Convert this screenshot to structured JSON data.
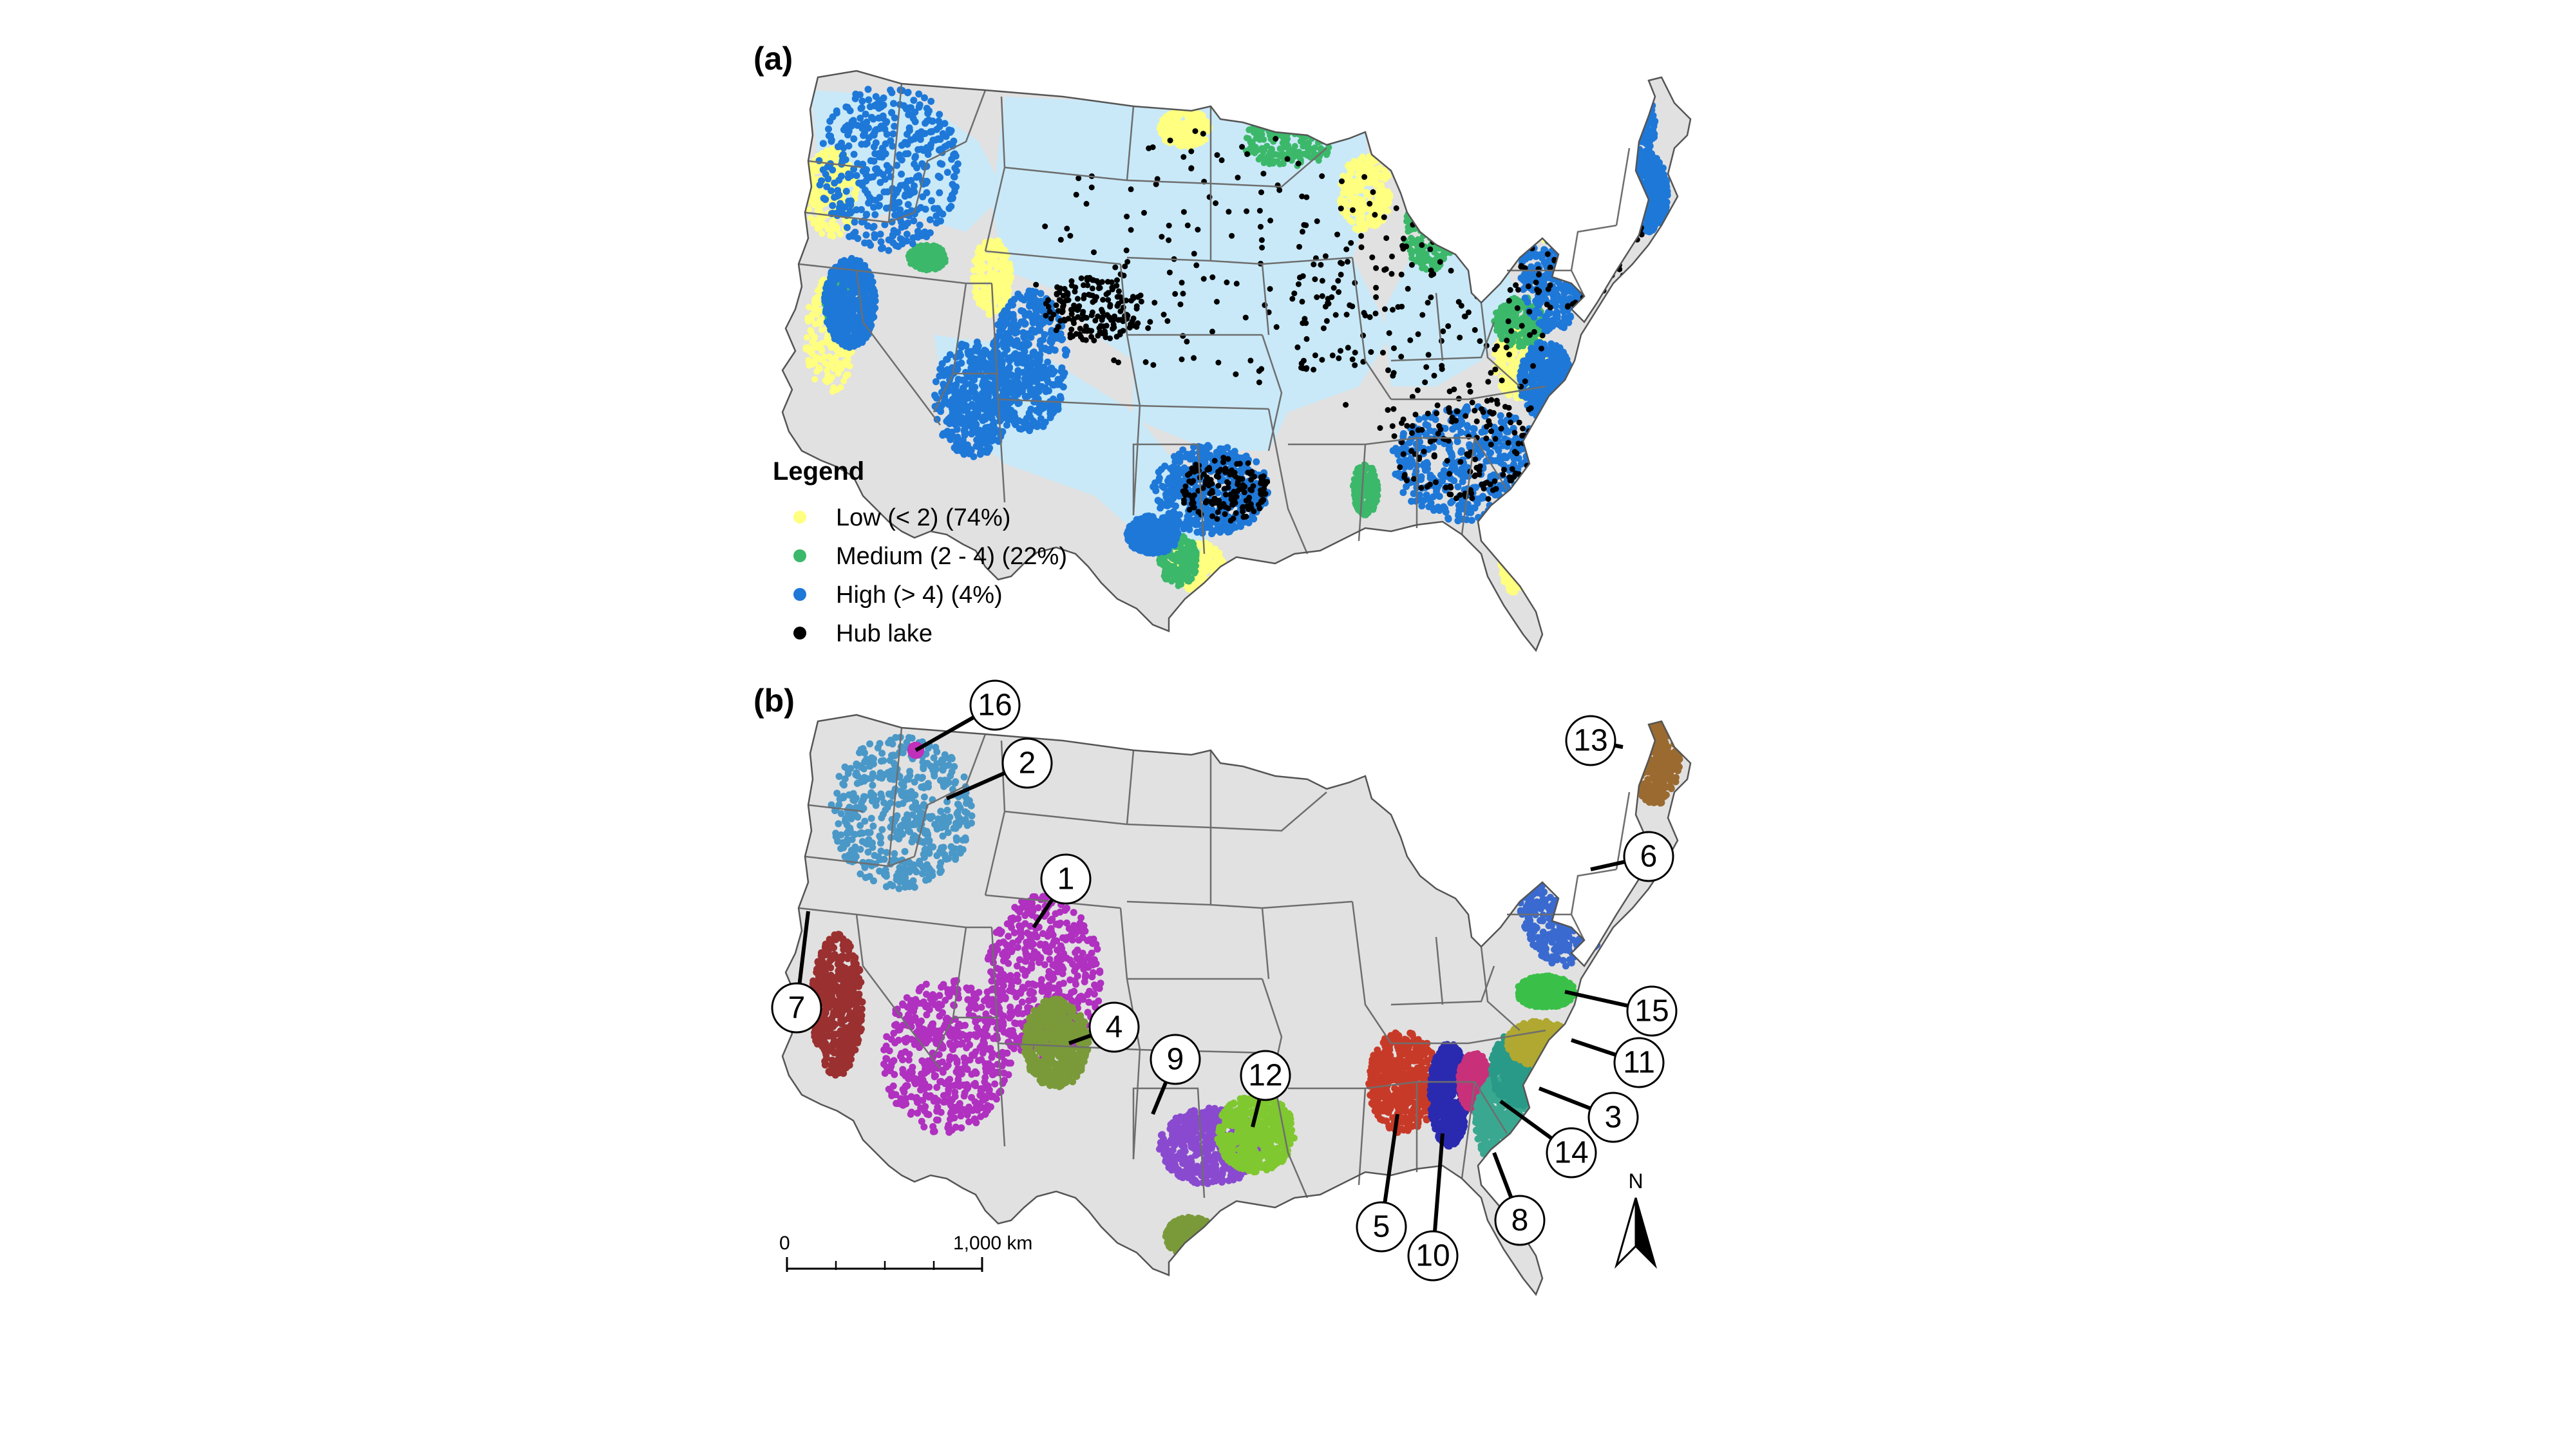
{
  "panels": {
    "a": {
      "label": "(a)"
    },
    "b": {
      "label": "(b)"
    }
  },
  "legend": {
    "title": "Legend",
    "items": [
      {
        "label": "Low (< 2) (74%)",
        "color": "#ffff80"
      },
      {
        "label": "Medium (2 - 4) (22%)",
        "color": "#3cb86a"
      },
      {
        "label": "High (> 4) (4%)",
        "color": "#1e78d8"
      },
      {
        "label": "Hub lake",
        "color": "#000000"
      }
    ]
  },
  "map_colors": {
    "land": "#e1e1e1",
    "low_fill": "#c9e9f8",
    "low_dot": "#ffff80",
    "medium_dot": "#3cb86a",
    "high_dot": "#1e78d8",
    "hub_dot": "#000000",
    "borders": "#6e6e6e"
  },
  "clusters": [
    {
      "id": "1",
      "color": "#b030c0"
    },
    {
      "id": "2",
      "color": "#4a98c8"
    },
    {
      "id": "3",
      "color": "#2a9a88"
    },
    {
      "id": "4",
      "color": "#7a9a3a"
    },
    {
      "id": "5",
      "color": "#c83a28"
    },
    {
      "id": "6",
      "color": "#3a6ad0"
    },
    {
      "id": "7",
      "color": "#9a3030"
    },
    {
      "id": "8",
      "color": "#3aa890"
    },
    {
      "id": "9",
      "color": "#8a4ad0"
    },
    {
      "id": "10",
      "color": "#2a2ab0"
    },
    {
      "id": "11",
      "color": "#b0a830"
    },
    {
      "id": "12",
      "color": "#80c830"
    },
    {
      "id": "13",
      "color": "#9a6a30"
    },
    {
      "id": "14",
      "color": "#c8307a"
    },
    {
      "id": "15",
      "color": "#3ac048"
    },
    {
      "id": "16",
      "color": "#c030b8"
    }
  ],
  "scale_bar": {
    "start_label": "0",
    "end_label": "1,000 km"
  },
  "north_arrow": {
    "label": "N",
    "icon": "north-arrow-icon"
  }
}
